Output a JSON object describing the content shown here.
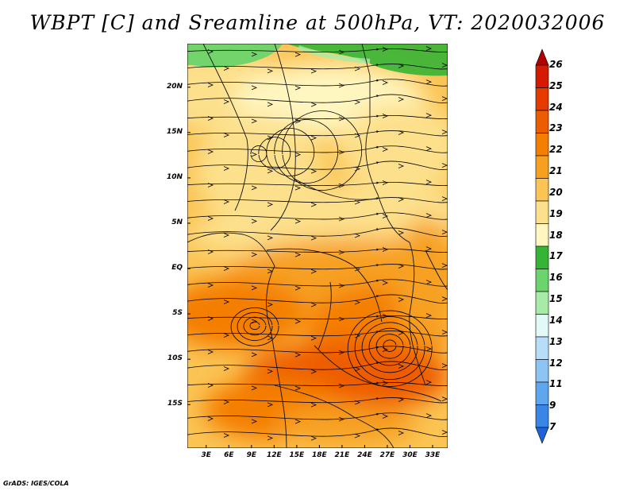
{
  "title": "WBPT [C] and Sreamline at 500hPa, VT: 2020032006",
  "credit": "GrADS: IGES/COLA",
  "map": {
    "lat_labels": [
      "20N",
      "15N",
      "10N",
      "5N",
      "EQ",
      "5S",
      "10S",
      "15S"
    ],
    "lat_values": [
      20,
      15,
      10,
      5,
      0,
      -5,
      -10,
      -15
    ],
    "lon_labels": [
      "3E",
      "6E",
      "9E",
      "12E",
      "15E",
      "18E",
      "21E",
      "24E",
      "27E",
      "30E",
      "33E"
    ],
    "lon_values": [
      3,
      6,
      9,
      12,
      15,
      18,
      21,
      24,
      27,
      30,
      33
    ],
    "lat_range": [
      -19.8,
      24.8
    ],
    "lon_range": [
      0.5,
      35
    ]
  },
  "colorbar": {
    "labels": [
      "26",
      "25",
      "24",
      "23",
      "22",
      "21",
      "20",
      "19",
      "18",
      "17",
      "16",
      "15",
      "14",
      "13",
      "12",
      "11",
      "9",
      "7"
    ],
    "colors": [
      "#b00000",
      "#d41a00",
      "#e53a00",
      "#ee5c00",
      "#f47e00",
      "#f7a020",
      "#fbc454",
      "#fde08c",
      "#fff6c0",
      "#36b436",
      "#6cd46c",
      "#a8eba8",
      "#e1faf8",
      "#b8ddf8",
      "#8cc4f4",
      "#5ea6ee",
      "#3a86e6",
      "#1e64d8"
    ]
  }
}
